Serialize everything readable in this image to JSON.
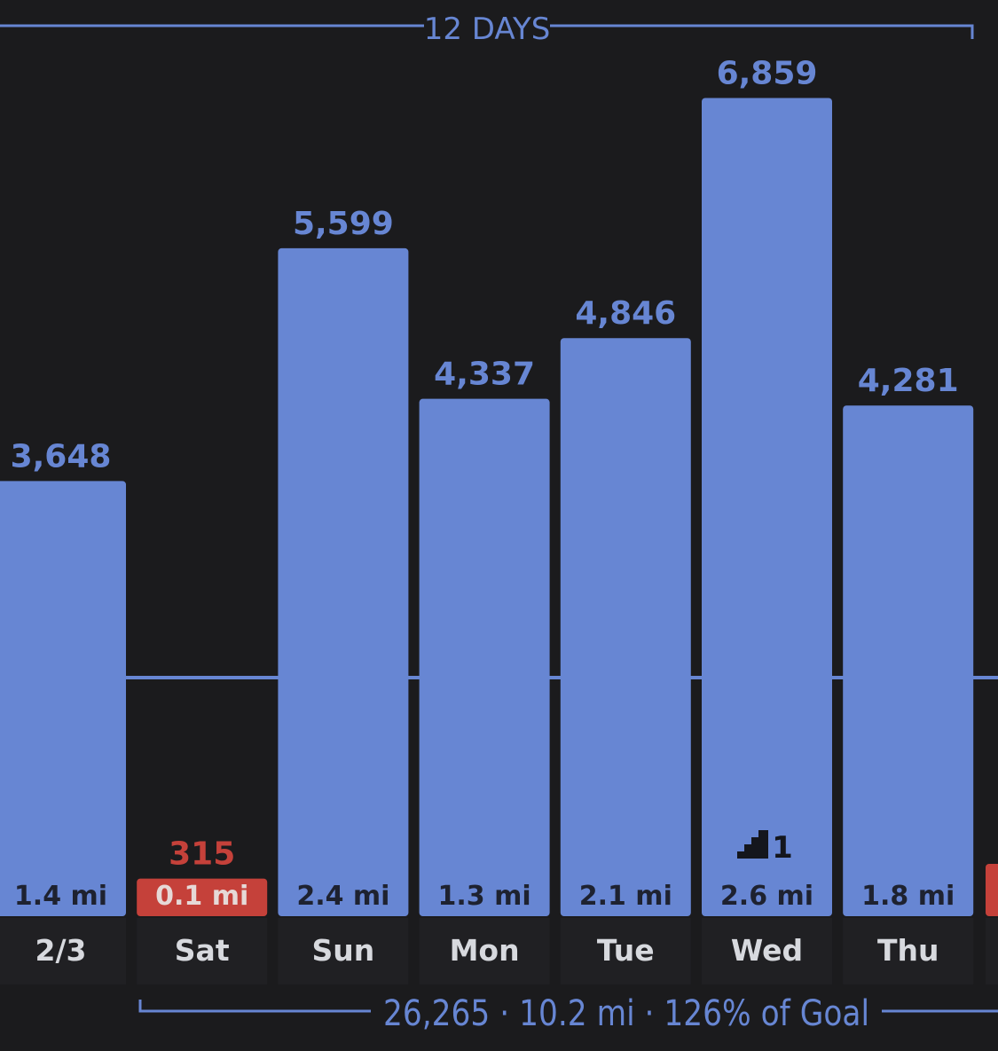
{
  "colors": {
    "background": "#1b1b1d",
    "bar": "#6786d3",
    "bar_below_goal": "#c5413a",
    "label_on_bar": "#1e2230",
    "label_below_goal": "#e6d9d7",
    "day_label": "#d7d9de",
    "accent_text": "#6786d3",
    "goal_line": "#6786d3",
    "column_bg": "#202023"
  },
  "header": {
    "period_label": "12 DAYS"
  },
  "summary": {
    "text": "26,265 · 10.2 mi · 126% of Goal"
  },
  "badge": {
    "icon": "stairs-icon",
    "count": "1"
  },
  "chart_data": {
    "type": "bar",
    "categories": [
      "2/3",
      "Sat",
      "Sun",
      "Mon",
      "Tue",
      "Wed",
      "Thu"
    ],
    "values": [
      3648,
      315,
      5599,
      4337,
      4846,
      6859,
      4281
    ],
    "value_labels": [
      "3,648",
      "315",
      "5,599",
      "4,337",
      "4,846",
      "6,859",
      "4,281"
    ],
    "distance_labels": [
      "1.4 mi",
      "0.1 mi",
      "2.4 mi",
      "1.3 mi",
      "2.1 mi",
      "2.6 mi",
      "1.8 mi"
    ],
    "goal": 2000,
    "ylim": [
      0,
      7400
    ],
    "grid": false,
    "xlabel": "",
    "ylabel": ""
  }
}
